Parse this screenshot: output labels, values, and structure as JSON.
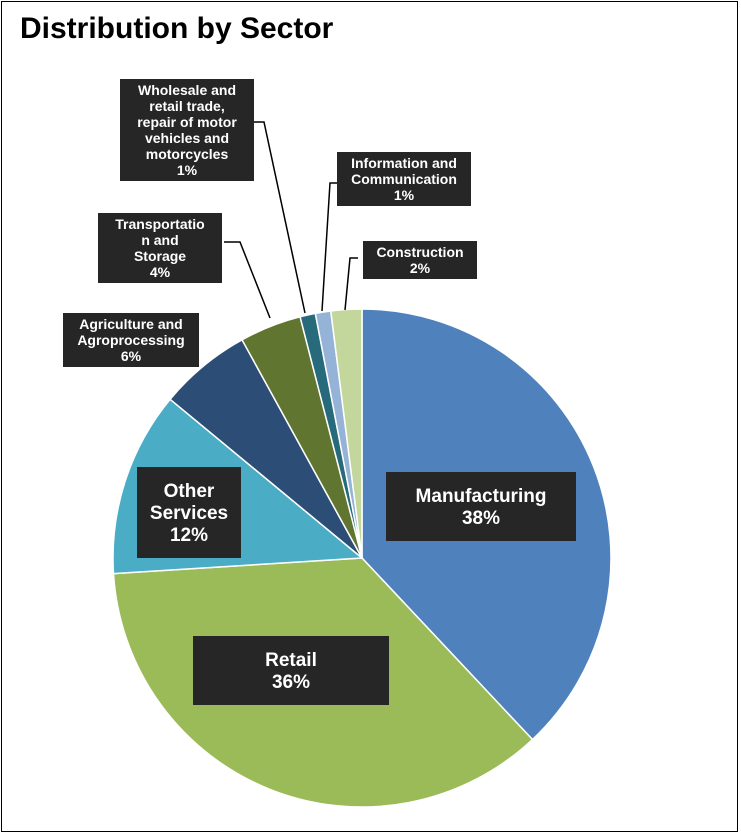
{
  "chart_data": {
    "type": "pie",
    "title": "Distribution by Sector",
    "slices": [
      {
        "label": "Manufacturing",
        "pct_label": "38%",
        "value": 38,
        "color": "#4f81bd"
      },
      {
        "label": "Retail",
        "pct_label": "36%",
        "value": 36,
        "color": "#9bbb59"
      },
      {
        "label": "Other Services",
        "pct_label": "12%",
        "value": 12,
        "color": "#4bacc6"
      },
      {
        "label": "Agriculture and Agroprocessing",
        "pct_label": "6%",
        "value": 6,
        "color": "#2c4d75"
      },
      {
        "label": "Transportation and Storage",
        "pct_label": "4%",
        "value": 4,
        "color": "#5f7530"
      },
      {
        "label": "Wholesale and retail trade, repair of motor vehicles and motorcycles",
        "pct_label": "1%",
        "value": 1,
        "color": "#276a7c"
      },
      {
        "label": "Information and Communication",
        "pct_label": "1%",
        "value": 1,
        "color": "#95b3d7"
      },
      {
        "label": "Construction",
        "pct_label": "2%",
        "value": 2,
        "color": "#c3d69b"
      }
    ],
    "label_lines": [
      [
        "Manufacturing",
        "38%"
      ],
      [
        "Retail",
        "36%"
      ],
      [
        "Other",
        "Services",
        "12%"
      ],
      [
        "Agriculture and",
        "Agroprocessing",
        "6%"
      ],
      [
        "Transportatio",
        "n and",
        "Storage",
        "4%"
      ],
      [
        "Wholesale and",
        "retail trade,",
        "repair of motor",
        "vehicles and",
        "motorcycles",
        "1%"
      ],
      [
        "Information and",
        "Communication",
        "1%"
      ],
      [
        "Construction",
        "2%"
      ]
    ]
  }
}
